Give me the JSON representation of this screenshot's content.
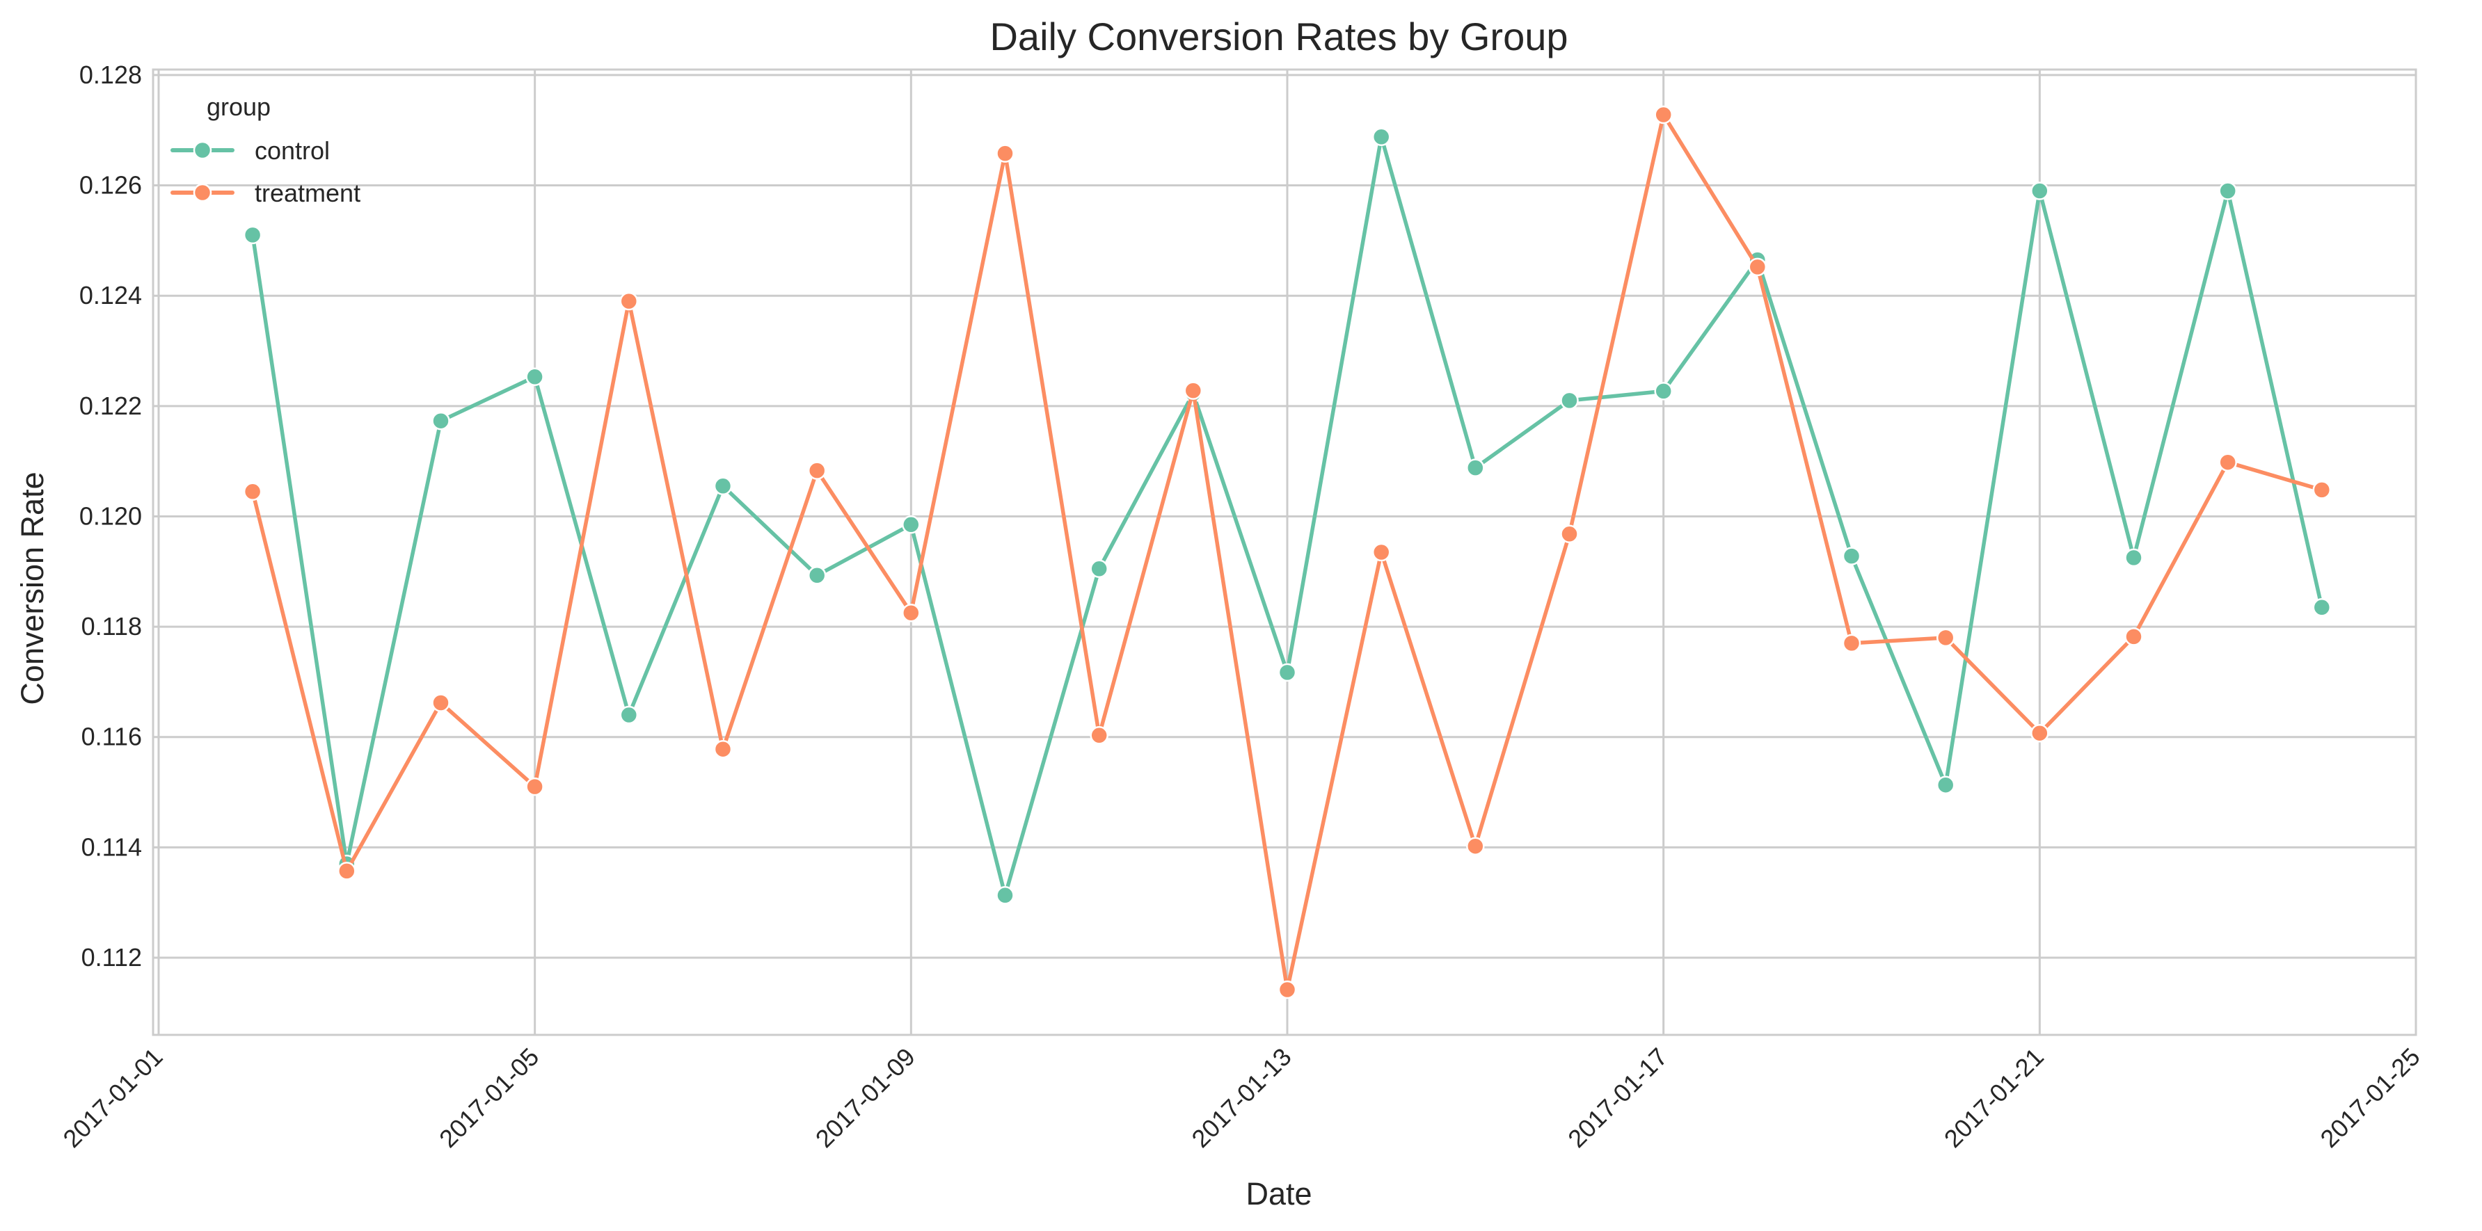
{
  "colors": {
    "control": "#66c2a5",
    "treatment": "#fc8d62",
    "grid": "#cccccc",
    "axes_edge": "#cccccc"
  },
  "chart_data": {
    "type": "line",
    "title": "Daily Conversion Rates by Group",
    "xlabel": "Date",
    "ylabel": "Conversion Rate",
    "x_ticks": [
      "2017-01-01",
      "2017-01-05",
      "2017-01-09",
      "2017-01-13",
      "2017-01-17",
      "2017-01-21",
      "2017-01-25"
    ],
    "y_ticks": [
      "0.112",
      "0.114",
      "0.116",
      "0.118",
      "0.120",
      "0.122",
      "0.124",
      "0.126",
      "0.128"
    ],
    "xlim": [
      "2016-12-31T22:35",
      "2017-01-25"
    ],
    "ylim": [
      0.1106,
      0.1281
    ],
    "grid": true,
    "legend": {
      "title": "group",
      "position": "top-left"
    },
    "x": [
      "2017-01-02",
      "2017-01-03",
      "2017-01-04",
      "2017-01-05",
      "2017-01-06",
      "2017-01-07",
      "2017-01-08",
      "2017-01-09",
      "2017-01-10",
      "2017-01-11",
      "2017-01-12",
      "2017-01-13",
      "2017-01-14",
      "2017-01-15",
      "2017-01-16",
      "2017-01-17",
      "2017-01-18",
      "2017-01-19",
      "2017-01-20",
      "2017-01-21",
      "2017-01-22",
      "2017-01-23",
      "2017-01-24"
    ],
    "series": [
      {
        "name": "control",
        "values": [
          0.1251,
          0.1137,
          0.12173,
          0.12253,
          0.1164,
          0.12055,
          0.11893,
          0.11985,
          0.11313,
          0.11905,
          0.12223,
          0.11717,
          0.12688,
          0.12088,
          0.1221,
          0.12227,
          0.12465,
          0.11928,
          0.11513,
          0.1259,
          0.11925,
          0.1259,
          0.11835
        ]
      },
      {
        "name": "treatment",
        "values": [
          0.12045,
          0.11357,
          0.11662,
          0.1151,
          0.1239,
          0.11578,
          0.12083,
          0.11825,
          0.12658,
          0.11603,
          0.12228,
          0.11142,
          0.11935,
          0.11402,
          0.11968,
          0.12728,
          0.12452,
          0.1177,
          0.1178,
          0.11607,
          0.11782,
          0.12098,
          0.12048
        ]
      }
    ]
  }
}
